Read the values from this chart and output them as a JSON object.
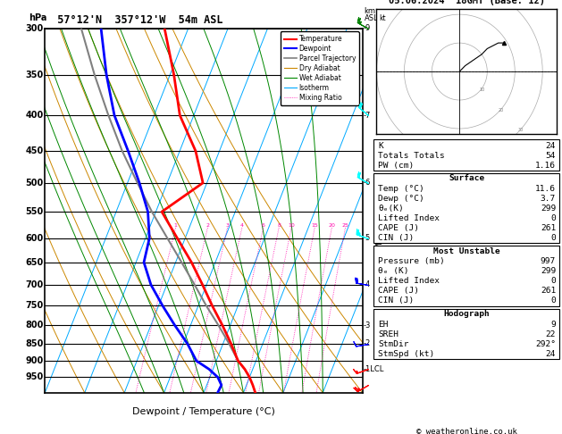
{
  "title_left": "57°12'N  357°12'W  54m ASL",
  "title_right": "05.06.2024  18GMT (Base: 12)",
  "xlabel": "Dewpoint / Temperature (°C)",
  "copyright": "© weatheronline.co.uk",
  "pressure_levels": [
    300,
    350,
    400,
    450,
    500,
    550,
    600,
    650,
    700,
    750,
    800,
    850,
    900,
    950
  ],
  "xlim": [
    -40,
    40
  ],
  "temp_profile": {
    "pressure": [
      1000,
      975,
      950,
      925,
      900,
      850,
      800,
      750,
      700,
      650,
      600,
      550,
      500,
      450,
      400,
      350,
      300
    ],
    "temp": [
      13.0,
      11.6,
      10.0,
      8.0,
      5.5,
      2.0,
      -2.0,
      -6.5,
      -11.0,
      -16.0,
      -22.0,
      -28.5,
      -21.0,
      -26.0,
      -33.5,
      -39.0,
      -46.0
    ]
  },
  "dewp_profile": {
    "pressure": [
      1000,
      975,
      950,
      925,
      900,
      850,
      800,
      750,
      700,
      650,
      600,
      550,
      500,
      450,
      400,
      350,
      300
    ],
    "dewp": [
      3.5,
      3.7,
      2.0,
      -1.0,
      -5.0,
      -9.0,
      -14.0,
      -19.0,
      -24.0,
      -28.0,
      -29.0,
      -32.0,
      -37.0,
      -43.0,
      -50.0,
      -56.0,
      -62.0
    ]
  },
  "parcel_profile": {
    "pressure": [
      925,
      900,
      850,
      800,
      750,
      700,
      650,
      600,
      550,
      500,
      450,
      400,
      350,
      300
    ],
    "temp": [
      8.0,
      5.5,
      1.5,
      -3.0,
      -8.0,
      -13.0,
      -18.5,
      -24.5,
      -31.0,
      -37.5,
      -44.5,
      -51.5,
      -59.0,
      -67.0
    ]
  },
  "isotherms": [
    -40,
    -30,
    -20,
    -10,
    0,
    10,
    20,
    30,
    40
  ],
  "dry_adiabats_base": [
    -40,
    -30,
    -20,
    -10,
    0,
    10,
    20,
    30,
    40,
    50
  ],
  "wet_adiabats_base": [
    -15,
    -10,
    -5,
    0,
    5,
    10,
    15,
    20,
    25,
    30
  ],
  "mixing_ratios": [
    1,
    2,
    3,
    4,
    6,
    8,
    10,
    15,
    20,
    25
  ],
  "skew_factor": 30,
  "colors": {
    "temperature": "#ff0000",
    "dewpoint": "#0000ff",
    "parcel": "#808080",
    "dry_adiabat": "#cc8800",
    "wet_adiabat": "#008800",
    "isotherm": "#00aaff",
    "mixing_ratio": "#ff00aa",
    "background": "#ffffff",
    "grid": "#000000"
  },
  "km_labels": {
    "300": "9",
    "400": "7",
    "500": "6",
    "600": "5",
    "700": "4",
    "800": "3",
    "850": "2",
    "925": "1LCL"
  },
  "wind_barbs": {
    "pressures": [
      975,
      925,
      850,
      700,
      600,
      500,
      400,
      300
    ],
    "speeds_kt": [
      25,
      15,
      12,
      20,
      25,
      20,
      20,
      25
    ],
    "dirs_deg": [
      240,
      250,
      260,
      280,
      290,
      300,
      310,
      300
    ],
    "colors": [
      "red",
      "red",
      "blue",
      "blue",
      "cyan",
      "cyan",
      "cyan",
      "green"
    ]
  },
  "hodograph": {
    "u": [
      0,
      2,
      5,
      8,
      10,
      12,
      14,
      16
    ],
    "v": [
      0,
      2,
      4,
      6,
      8,
      9,
      10,
      10
    ]
  },
  "info_panel": {
    "K": "24",
    "Totals_Totals": "54",
    "PW_cm": "1.16",
    "Surface_Temp": "11.6",
    "Surface_Dewp": "3.7",
    "Surface_Theta_e": "299",
    "Surface_LI": "0",
    "Surface_CAPE": "261",
    "Surface_CIN": "0",
    "MU_Pressure": "997",
    "MU_Theta_e": "299",
    "MU_LI": "0",
    "MU_CAPE": "261",
    "MU_CIN": "0",
    "EH": "9",
    "SREH": "22",
    "StmDir": "292°",
    "StmSpd": "24"
  }
}
